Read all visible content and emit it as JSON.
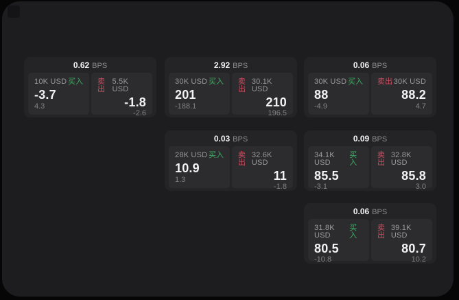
{
  "theme": {
    "page_bg": "#060607",
    "surface_bg": "#1d1d1f",
    "icon_bg": "#141416",
    "card_bg": "#242427",
    "panel_bg": "#2c2c2e",
    "value_bright": "#f2f2f4",
    "label": "#9a9a9e",
    "dim": "#828287",
    "muted": "#8d8d91",
    "buy": "#3eae64",
    "sell": "#cf4f63"
  },
  "labels": {
    "bps": "BPS",
    "buy": "买入",
    "sell": "卖出"
  },
  "cards": [
    {
      "row": 1,
      "col": 1,
      "bps": "0.62",
      "buy": {
        "size": "10K USD",
        "price": "-3.7",
        "delta": "4.3"
      },
      "sell": {
        "size": "5.5K USD",
        "price": "-1.8",
        "delta": "-2.6"
      }
    },
    {
      "row": 1,
      "col": 2,
      "bps": "2.92",
      "buy": {
        "size": "30K USD",
        "price": "201",
        "delta": "-188.1"
      },
      "sell": {
        "size": "30.1K USD",
        "price": "210",
        "delta": "196.5"
      }
    },
    {
      "row": 1,
      "col": 3,
      "bps": "0.06",
      "buy": {
        "size": "30K USD",
        "price": "88",
        "delta": "-4.9"
      },
      "sell": {
        "size": "30K USD",
        "price": "88.2",
        "delta": "4.7"
      }
    },
    {
      "row": 2,
      "col": 2,
      "bps": "0.03",
      "buy": {
        "size": "28K USD",
        "price": "10.9",
        "delta": "1.3"
      },
      "sell": {
        "size": "32.6K USD",
        "price": "11",
        "delta": "-1.8"
      }
    },
    {
      "row": 2,
      "col": 3,
      "bps": "0.09",
      "buy": {
        "size": "34.1K USD",
        "price": "85.5",
        "delta": "-3.1"
      },
      "sell": {
        "size": "32.8K USD",
        "price": "85.8",
        "delta": "3.0"
      }
    },
    {
      "row": 3,
      "col": 3,
      "bps": "0.06",
      "buy": {
        "size": "31.8K USD",
        "price": "80.5",
        "delta": "-10.8"
      },
      "sell": {
        "size": "39.1K USD",
        "price": "80.7",
        "delta": "10.2"
      }
    }
  ]
}
